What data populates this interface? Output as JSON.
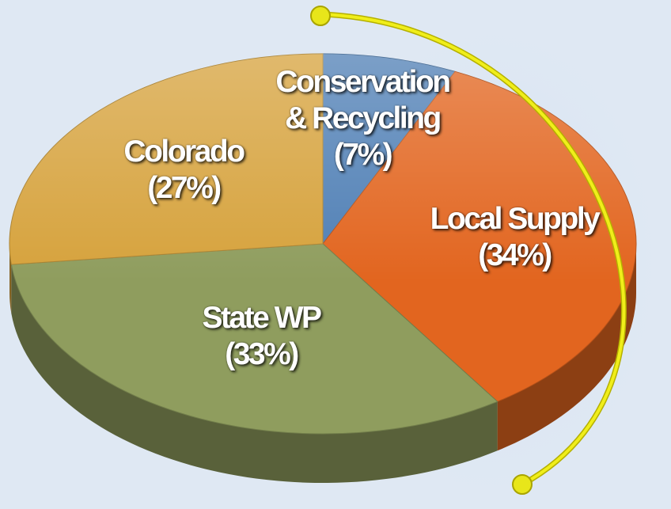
{
  "chart_data": {
    "type": "pie",
    "categories": [
      "Conservation & Recycling",
      "Local Supply",
      "State WP",
      "Colorado"
    ],
    "values": [
      7,
      34,
      33,
      27
    ],
    "value_labels": [
      "(7%)",
      "(34%)",
      "(33%)",
      "(27%)"
    ],
    "colors": [
      "#4f7fb5",
      "#e2651f",
      "#8f9d5e",
      "#d6a23c"
    ]
  }
}
